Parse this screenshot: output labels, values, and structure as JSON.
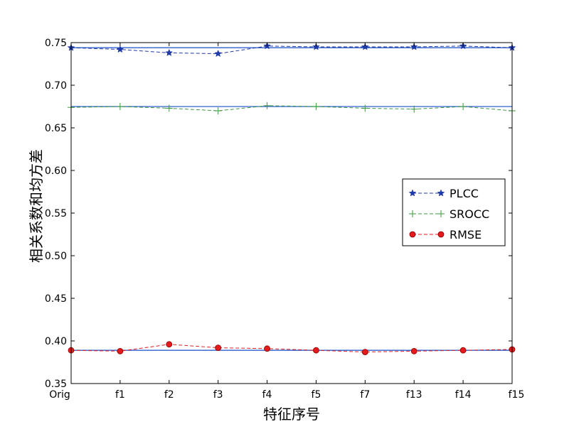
{
  "chart_data": {
    "type": "line",
    "xlabel": "特征序号",
    "ylabel": "相关系数和均方差",
    "categories": [
      "Orig",
      "f1",
      "f2",
      "f3",
      "f4",
      "f5",
      "f7",
      "f13",
      "f14",
      "f15"
    ],
    "ylim": [
      0.35,
      0.75
    ],
    "yticks": [
      "0.35",
      "0.40",
      "0.45",
      "0.50",
      "0.55",
      "0.60",
      "0.65",
      "0.70",
      "0.75"
    ],
    "grid": false,
    "legend_position": "center-right",
    "series": [
      {
        "name": "PLCC",
        "marker": "star",
        "color": "#1f3aa6",
        "values": [
          0.744,
          0.742,
          0.738,
          0.737,
          0.746,
          0.745,
          0.745,
          0.745,
          0.746,
          0.744
        ],
        "baseline": 0.744
      },
      {
        "name": "SROCC",
        "marker": "plus",
        "color": "#3a9a3a",
        "values": [
          0.674,
          0.675,
          0.673,
          0.67,
          0.676,
          0.675,
          0.673,
          0.672,
          0.675,
          0.67
        ],
        "baseline": 0.675
      },
      {
        "name": "RMSE",
        "marker": "circle",
        "color": "#e41a1c",
        "values": [
          0.389,
          0.388,
          0.396,
          0.392,
          0.391,
          0.389,
          0.387,
          0.388,
          0.389,
          0.39
        ],
        "baseline": 0.389
      }
    ],
    "baseline_color": "#2d5fcf"
  }
}
